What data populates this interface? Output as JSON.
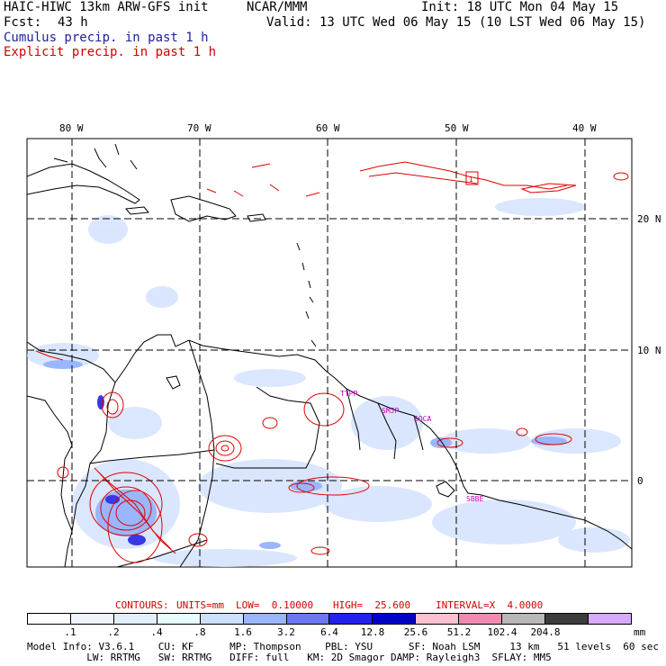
{
  "header": {
    "model": "HAIC-HIWC 13km ARW-GFS init",
    "org": "NCAR/MMM",
    "init": "Init: 18 UTC Mon 04 May 15",
    "fcst_label": "Fcst:",
    "fcst_value": "43 h",
    "valid": "Valid: 13 UTC Wed 06 May 15 (10 LST Wed 06 May 15)",
    "legend_cumulus": "Cumulus precip. in past 1 h",
    "legend_explicit": "Explicit precip. in past 1 h"
  },
  "map": {
    "lon_labels": [
      "80 W",
      "70 W",
      "60 W",
      "50 W",
      "40 W"
    ],
    "lat_labels": [
      "20 N",
      "10 N",
      "0"
    ],
    "stations": [
      "TTPP",
      "SMJP",
      "SOCA",
      "SBBE"
    ],
    "marker": "1"
  },
  "contours": {
    "label": "CONTOURS:",
    "units": "UNITS=mm",
    "low": "LOW=  0.10000",
    "high": "HIGH=  25.600",
    "interval": "INTERVAL=X  4.0000"
  },
  "colorbar": {
    "levels": [
      ".1",
      ".2",
      ".4",
      ".8",
      "1.6",
      "3.2",
      "6.4",
      "12.8",
      "25.6",
      "51.2",
      "102.4",
      "204.8"
    ],
    "unit": "mm",
    "colors": [
      "#ffffff",
      "#f0f4ff",
      "#e2eefe",
      "#e8fefe",
      "#cce0ff",
      "#9ab6ff",
      "#6c78f2",
      "#2222ee",
      "#0000c8",
      "#fcc0d0",
      "#f08ab0",
      "#b8b8b8",
      "#3c3c3c",
      "#d8aaff"
    ]
  },
  "model_info": {
    "line1": "Model Info: V3.6.1    CU: KF      MP: Thompson    PBL: YSU      SF: Noah LSM     13 km   51 levels  60 sec",
    "line2": "          LW: RRTMG   SW: RRTMG   DIFF: full   KM: 2D Smagor DAMP: Rayleigh3  SFLAY: MM5"
  }
}
